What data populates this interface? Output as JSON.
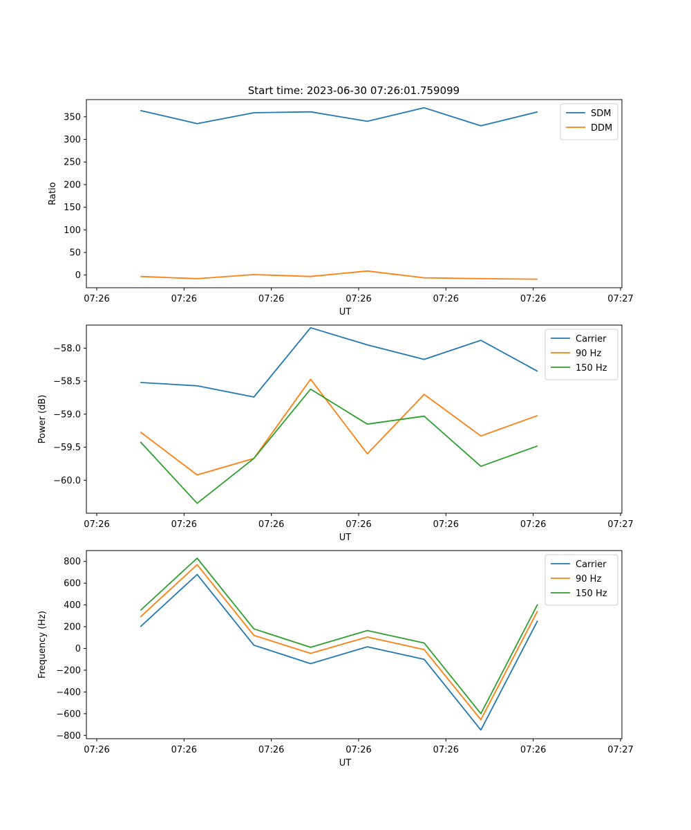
{
  "figure_title": "Start time: 2023-06-30 07:26:01.759099",
  "colors": {
    "blue": "#1f77b4",
    "orange": "#ff7f0e",
    "green": "#2ca02c",
    "axes": "#000000",
    "legend_border": "#cccccc"
  },
  "chart_data": [
    {
      "type": "line",
      "title": "Start time: 2023-06-30 07:26:01.759099",
      "xlabel": "UT",
      "ylabel": "Ratio",
      "x_ticks": [
        "07:26",
        "07:26",
        "07:26",
        "07:26",
        "07:26",
        "07:26",
        "07:27"
      ],
      "y_ticks": [
        0,
        50,
        100,
        150,
        200,
        250,
        300,
        350
      ],
      "xlim": [
        0,
        6
      ],
      "ylim": [
        -28,
        388
      ],
      "grid": false,
      "legend_position": "top-right",
      "x": [
        0.5,
        1.15,
        1.8,
        2.45,
        3.1,
        3.75,
        4.4,
        5.05
      ],
      "series": [
        {
          "name": "SDM",
          "color": "blue",
          "values": [
            364,
            335,
            359,
            361,
            340,
            370,
            330,
            361
          ]
        },
        {
          "name": "DDM",
          "color": "orange",
          "values": [
            -3,
            -8,
            1,
            -3,
            9,
            -6,
            -8,
            -9
          ]
        }
      ]
    },
    {
      "type": "line",
      "xlabel": "UT",
      "ylabel": "Power (dB)",
      "x_ticks": [
        "07:26",
        "07:26",
        "07:26",
        "07:26",
        "07:26",
        "07:26",
        "07:27"
      ],
      "y_ticks": [
        -60.0,
        -59.5,
        -59.0,
        -58.5,
        -58.0
      ],
      "y_tick_labels": [
        "−60.0",
        "−59.5",
        "−59.0",
        "−58.5",
        "−58.0"
      ],
      "xlim": [
        0,
        6
      ],
      "ylim": [
        -60.5,
        -57.65
      ],
      "grid": false,
      "legend_position": "top-right",
      "x": [
        0.5,
        1.15,
        1.8,
        2.45,
        3.1,
        3.75,
        4.4,
        5.05
      ],
      "series": [
        {
          "name": "Carrier",
          "color": "blue",
          "values": [
            -58.52,
            -58.57,
            -58.74,
            -57.69,
            -57.95,
            -58.17,
            -57.88,
            -58.35
          ]
        },
        {
          "name": "90 Hz",
          "color": "orange",
          "values": [
            -59.27,
            -59.92,
            -59.67,
            -58.47,
            -59.6,
            -58.7,
            -59.33,
            -59.02
          ]
        },
        {
          "name": "150 Hz",
          "color": "green",
          "values": [
            -59.42,
            -60.35,
            -59.67,
            -58.62,
            -59.15,
            -59.03,
            -59.79,
            -59.48
          ]
        }
      ]
    },
    {
      "type": "line",
      "xlabel": "UT",
      "ylabel": "Frequency (Hz)",
      "x_ticks": [
        "07:26",
        "07:26",
        "07:26",
        "07:26",
        "07:26",
        "07:26",
        "07:27"
      ],
      "y_ticks": [
        -800,
        -600,
        -400,
        -200,
        0,
        200,
        400,
        600,
        800
      ],
      "y_tick_labels": [
        "−800",
        "−600",
        "−400",
        "−200",
        "0",
        "200",
        "400",
        "600",
        "800"
      ],
      "xlim": [
        0,
        6
      ],
      "ylim": [
        -830,
        900
      ],
      "grid": false,
      "legend_position": "top-right",
      "x": [
        0.5,
        1.15,
        1.8,
        2.45,
        3.1,
        3.75,
        4.4,
        5.05
      ],
      "series": [
        {
          "name": "Carrier",
          "color": "blue",
          "values": [
            200,
            680,
            30,
            -140,
            15,
            -100,
            -750,
            255
          ]
        },
        {
          "name": "90 Hz",
          "color": "orange",
          "values": [
            290,
            770,
            120,
            -45,
            105,
            -10,
            -655,
            345
          ]
        },
        {
          "name": "150 Hz",
          "color": "green",
          "values": [
            350,
            830,
            180,
            10,
            165,
            50,
            -600,
            405
          ]
        }
      ]
    }
  ]
}
